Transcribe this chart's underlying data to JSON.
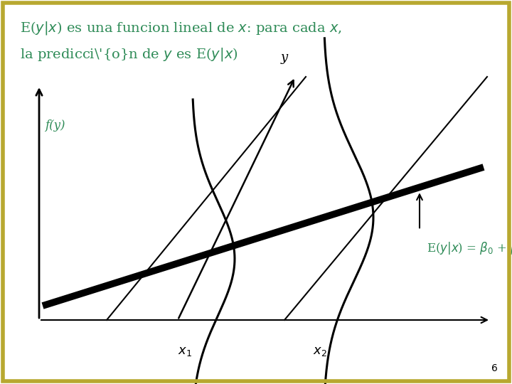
{
  "title_line1": "E(y|x) es una funcion lineal de x: para cada x,",
  "title_line2": "la predicción de y es E(y|x)",
  "title_color": "#2e8b57",
  "fy_label_color": "#2e8b57",
  "bg_color": "#ffffff",
  "border_color": "#b8a830",
  "annotation_color": "#2e8b57",
  "page_number": "6"
}
